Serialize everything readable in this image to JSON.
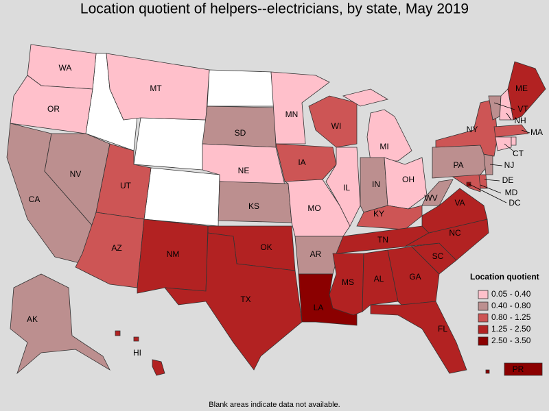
{
  "title": "Location quotient of helpers--electricians, by state, May 2019",
  "legend": {
    "title": "Location quotient",
    "items": [
      {
        "label": "0.05 - 0.40",
        "color": "#ffc0cb"
      },
      {
        "label": "0.40 - 0.80",
        "color": "#bc8f8f"
      },
      {
        "label": "0.80 - 1.25",
        "color": "#cd5555"
      },
      {
        "label": "1.25 - 2.50",
        "color": "#b22222"
      },
      {
        "label": "2.50 - 3.50",
        "color": "#8b0000"
      }
    ]
  },
  "states": [
    {
      "label": "WA",
      "bin": 0
    },
    {
      "label": "OR",
      "bin": 0
    },
    {
      "label": "CA",
      "bin": 1
    },
    {
      "label": "NV",
      "bin": 1
    },
    {
      "label": "MT",
      "bin": 0
    },
    {
      "label": "UT",
      "bin": 2
    },
    {
      "label": "AZ",
      "bin": 2
    },
    {
      "label": "NM",
      "bin": 3
    },
    {
      "label": "SD",
      "bin": 1
    },
    {
      "label": "NE",
      "bin": 0
    },
    {
      "label": "KS",
      "bin": 1
    },
    {
      "label": "OK",
      "bin": 3
    },
    {
      "label": "TX",
      "bin": 3
    },
    {
      "label": "MN",
      "bin": 0
    },
    {
      "label": "IA",
      "bin": 2
    },
    {
      "label": "MO",
      "bin": 0
    },
    {
      "label": "AR",
      "bin": 1
    },
    {
      "label": "LA",
      "bin": 4
    },
    {
      "label": "WI",
      "bin": 2
    },
    {
      "label": "IL",
      "bin": 0
    },
    {
      "label": "MI",
      "bin": 0
    },
    {
      "label": "IN",
      "bin": 1
    },
    {
      "label": "OH",
      "bin": 0
    },
    {
      "label": "KY",
      "bin": 2
    },
    {
      "label": "TN",
      "bin": 3
    },
    {
      "label": "MS",
      "bin": 3
    },
    {
      "label": "AL",
      "bin": 3
    },
    {
      "label": "GA",
      "bin": 3
    },
    {
      "label": "FL",
      "bin": 3
    },
    {
      "label": "SC",
      "bin": 3
    },
    {
      "label": "NC",
      "bin": 3
    },
    {
      "label": "VA",
      "bin": 3
    },
    {
      "label": "WV",
      "bin": 1
    },
    {
      "label": "MD",
      "bin": 2
    },
    {
      "label": "DE",
      "bin": 2
    },
    {
      "label": "DC",
      "bin": 4
    },
    {
      "label": "PA",
      "bin": 1
    },
    {
      "label": "NJ",
      "bin": 1
    },
    {
      "label": "NY",
      "bin": 2
    },
    {
      "label": "VT",
      "bin": 1
    },
    {
      "label": "NH",
      "bin": 0
    },
    {
      "label": "ME",
      "bin": 3
    },
    {
      "label": "MA",
      "bin": 2
    },
    {
      "label": "CT",
      "bin": 0
    },
    {
      "label": null,
      "bin": 0
    },
    {
      "label": "AK",
      "bin": 1
    },
    {
      "label": "HI",
      "bin": 3
    },
    {
      "label": "PR",
      "bin": 4
    }
  ],
  "note": "Blank areas indicate data not available."
}
